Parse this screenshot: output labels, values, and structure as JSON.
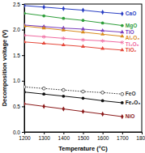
{
  "chart_data": {
    "type": "line",
    "x_label": "Temperature (°C)",
    "y_label": "Decomposition voltage (V)",
    "x": [
      1200,
      1300,
      1400,
      1500,
      1600,
      1700
    ],
    "xlim": [
      1200,
      1800
    ],
    "xticks": [
      1200,
      1300,
      1400,
      1500,
      1600,
      1700,
      1800
    ],
    "ylim": [
      0,
      2.5
    ],
    "yticks": [
      {
        "value": 0,
        "label": "0.0"
      },
      {
        "value": 0.5,
        "label": "0.5"
      },
      {
        "value": 1,
        "label": "1.0"
      },
      {
        "value": 1.5,
        "label": "1.5"
      },
      {
        "value": 2,
        "label": "2.0"
      },
      {
        "value": 2.5,
        "label": "2.5"
      }
    ],
    "grid": false,
    "series": [
      {
        "name": "CaO",
        "color": "#2a3fc4",
        "marker": "diamond",
        "line_style": "solid",
        "values": [
          2.47,
          2.44,
          2.41,
          2.38,
          2.34,
          2.31
        ]
      },
      {
        "name": "MgO",
        "color": "#2e9e3a",
        "marker": "circle",
        "line_style": "solid",
        "values": [
          2.32,
          2.27,
          2.22,
          2.18,
          2.13,
          2.08
        ]
      },
      {
        "name": "TiO",
        "color": "#7a3fbf",
        "marker": "triangle",
        "line_style": "solid",
        "values": [
          2.09,
          2.06,
          2.03,
          2.01,
          1.98,
          1.95
        ]
      },
      {
        "name": "Al₂O₃",
        "color": "#d98a1c",
        "marker": "triangle",
        "line_style": "solid",
        "values": [
          2.07,
          2.03,
          1.99,
          1.95,
          1.91,
          1.87
        ]
      },
      {
        "name": "Ti₃O₅",
        "color": "#f06aa0",
        "marker": "asterisk",
        "line_style": "solid",
        "values": [
          1.89,
          1.86,
          1.83,
          1.8,
          1.78,
          1.75
        ]
      },
      {
        "name": "TiO₂",
        "color": "#e5483a",
        "marker": "triangle",
        "line_style": "solid",
        "values": [
          1.76,
          1.73,
          1.7,
          1.67,
          1.63,
          1.6
        ]
      },
      {
        "name": "FeO",
        "color": "#333333",
        "marker": "open-circle",
        "line_style": "dotted",
        "values": [
          0.88,
          0.85,
          0.82,
          0.79,
          0.77,
          0.74
        ]
      },
      {
        "name": "Fe₂O₃",
        "color": "#111111",
        "marker": "circle",
        "line_style": "solid",
        "values": [
          0.78,
          0.74,
          0.7,
          0.66,
          0.61,
          0.57
        ]
      },
      {
        "name": "NiO",
        "color": "#8b1a1a",
        "marker": "diamond",
        "line_style": "solid",
        "values": [
          0.55,
          0.5,
          0.45,
          0.4,
          0.35,
          0.3
        ]
      }
    ]
  }
}
